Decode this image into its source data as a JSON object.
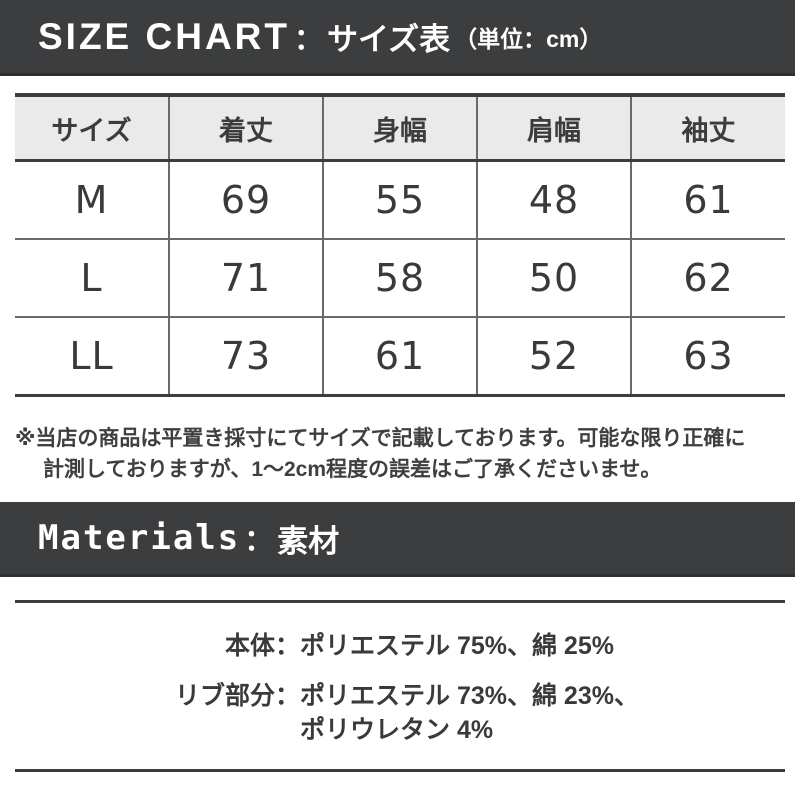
{
  "size_chart": {
    "header": {
      "en": "SIZE CHART",
      "sep": "：",
      "ja": "サイズ表",
      "unit": "（単位：cm）"
    },
    "table": {
      "columns": [
        "サイズ",
        "着丈",
        "身幅",
        "肩幅",
        "袖丈"
      ],
      "rows": [
        [
          "M",
          "69",
          "55",
          "48",
          "61"
        ],
        [
          "L",
          "71",
          "58",
          "50",
          "62"
        ],
        [
          "LL",
          "73",
          "61",
          "52",
          "63"
        ]
      ]
    },
    "note": {
      "line1": "※当店の商品は平置き採寸にてサイズで記載しております。可能な限り正確に",
      "line2": "計測しておりますが、1〜2cm程度の誤差はご了承くださいませ。"
    }
  },
  "materials": {
    "header": {
      "en": "Materials",
      "sep": "：",
      "ja": "素材"
    },
    "items": [
      {
        "label": "本体",
        "colon": "：",
        "value": "ポリエステル 75%、綿 25%"
      },
      {
        "label": "リブ部分",
        "colon": "：",
        "value": "ポリエステル 73%、綿 23%、",
        "value2": "ポリウレタン 4%"
      }
    ]
  },
  "colors": {
    "bar_background": "#3b3d3f",
    "table_header_background": "#eaeaea",
    "border_dark": "#3c3c3c",
    "border_light": "#6a6a6a",
    "text": "#3a3a3a",
    "text_on_dark": "#ffffff"
  }
}
